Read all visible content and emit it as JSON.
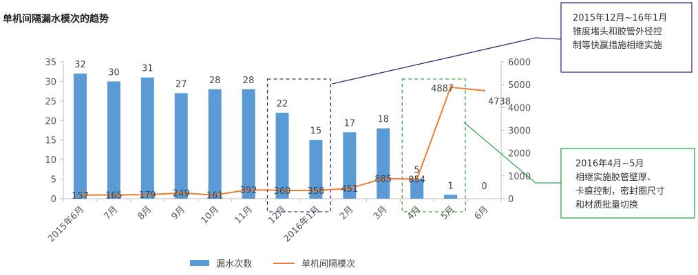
{
  "chart_data": {
    "type": "bar",
    "title": "单机间隔漏水模次的趋势",
    "categories": [
      "2015年6月",
      "7月",
      "8月",
      "9月",
      "10月",
      "11月",
      "12月",
      "2016年1月",
      "2月",
      "3月",
      "4月",
      "5月",
      "6月"
    ],
    "series": [
      {
        "name": "漏水次数",
        "type": "bar",
        "axis": "left",
        "color": "#5b9bd5",
        "values": [
          32,
          30,
          31,
          27,
          28,
          28,
          22,
          15,
          17,
          18,
          5,
          1,
          0
        ]
      },
      {
        "name": "单机间隔模次",
        "type": "line",
        "axis": "right",
        "color": "#ed7d31",
        "values": [
          157,
          165,
          179,
          249,
          161,
          392,
          360,
          358,
          451,
          885,
          854,
          4887,
          4738
        ]
      }
    ],
    "y_left": {
      "min": 0,
      "max": 35,
      "ticks": [
        0,
        5,
        10,
        15,
        20,
        25,
        30,
        35
      ]
    },
    "y_right": {
      "min": 0,
      "max": 6000,
      "ticks": [
        0,
        1000,
        2000,
        3000,
        4000,
        5000,
        6000
      ]
    },
    "grid": false,
    "legend_position": "bottom",
    "highlights": [
      {
        "from_category": "12月",
        "to_category": "2016年1月",
        "color": "#2e3a78",
        "style": "dashed"
      },
      {
        "from_category": "4月",
        "to_category": "5月",
        "color": "#2ea84a",
        "style": "dashed"
      }
    ],
    "annotations": [
      {
        "lines": [
          "2015年12月~16年1月",
          "锥度堵头和胶管外径控",
          "制等快赢措施相继实施"
        ],
        "border_color": "#2e2f7a",
        "target_category": "12月"
      },
      {
        "lines": [
          "2016年4月~5月",
          "相继实施胶管壁厚、",
          "卡痕控制，密封圈尺寸",
          "和材质批量切换"
        ],
        "border_color": "#2ea84a",
        "target_category": "5月"
      }
    ]
  }
}
